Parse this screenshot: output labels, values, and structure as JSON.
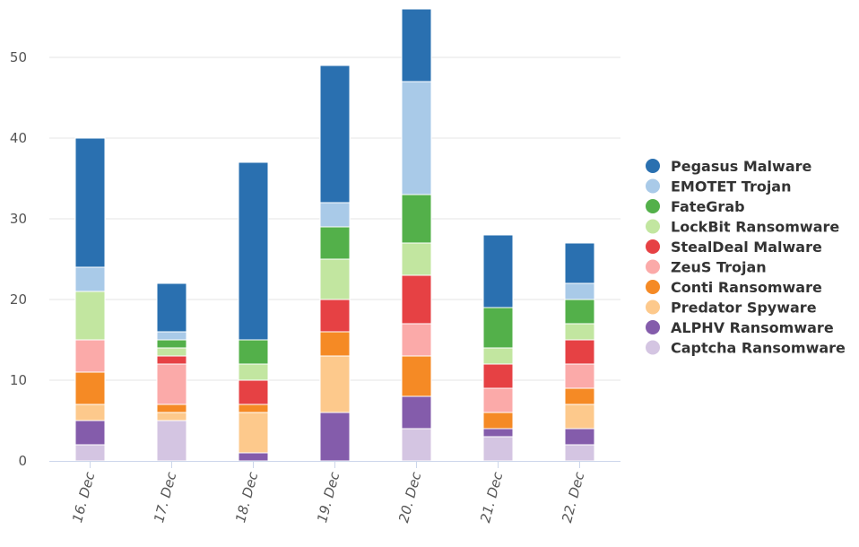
{
  "chart_data": {
    "type": "bar",
    "stacked": true,
    "categories": [
      "16. Dec",
      "17. Dec",
      "18. Dec",
      "19. Dec",
      "20. Dec",
      "21. Dec",
      "22. Dec"
    ],
    "series": [
      {
        "name": "Captcha Ransomware",
        "color": "#d4c5e2",
        "values": [
          2,
          5,
          0,
          0,
          4,
          3,
          2
        ]
      },
      {
        "name": "ALPHV Ransomware",
        "color": "#845cab",
        "values": [
          3,
          0,
          1,
          6,
          4,
          1,
          2
        ]
      },
      {
        "name": "Predator Spyware",
        "color": "#fdc98c",
        "values": [
          2,
          1,
          5,
          7,
          0,
          0,
          3
        ]
      },
      {
        "name": "Conti Ransomware",
        "color": "#f58a25",
        "values": [
          4,
          1,
          1,
          3,
          5,
          2,
          2
        ]
      },
      {
        "name": "ZeuS Trojan",
        "color": "#fbaaa9",
        "values": [
          4,
          5,
          0,
          0,
          4,
          3,
          3
        ]
      },
      {
        "name": "StealDeal Malware",
        "color": "#e64144",
        "values": [
          0,
          1,
          3,
          4,
          6,
          3,
          3
        ]
      },
      {
        "name": "LockBit Ransomware",
        "color": "#c2e6a0",
        "values": [
          6,
          1,
          2,
          5,
          4,
          2,
          2
        ]
      },
      {
        "name": "FateGrab",
        "color": "#53b04a",
        "values": [
          0,
          1,
          3,
          4,
          6,
          5,
          3
        ]
      },
      {
        "name": "EMOTET Trojan",
        "color": "#a9cae8",
        "values": [
          3,
          1,
          0,
          3,
          14,
          0,
          2
        ]
      },
      {
        "name": "Pegasus Malware",
        "color": "#2a70b0",
        "values": [
          16,
          6,
          22,
          17,
          9,
          9,
          5
        ]
      }
    ],
    "legend_order": [
      "Pegasus Malware",
      "EMOTET Trojan",
      "FateGrab",
      "LockBit Ransomware",
      "StealDeal Malware",
      "ZeuS Trojan",
      "Conti Ransomware",
      "Predator Spyware",
      "ALPHV Ransomware",
      "Captcha Ransomware"
    ],
    "ylim": [
      0,
      56
    ],
    "yticks": [
      0,
      10,
      20,
      30,
      40,
      50
    ],
    "grid": true,
    "legend_position": "right",
    "title": "",
    "xlabel": "",
    "ylabel": ""
  }
}
